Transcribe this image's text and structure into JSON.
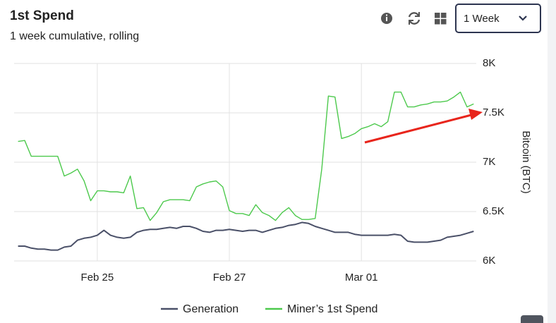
{
  "chart_data": {
    "type": "line",
    "title": "1st Spend",
    "subtitle": "1 week cumulative, rolling",
    "ylabel": "Bitcoin (BTC)",
    "x": [
      23.8,
      23.9,
      24.0,
      24.1,
      24.2,
      24.3,
      24.4,
      24.5,
      24.6,
      24.7,
      24.8,
      24.9,
      25.0,
      25.1,
      25.2,
      25.3,
      25.4,
      25.5,
      25.6,
      25.7,
      25.8,
      25.9,
      26.0,
      26.1,
      26.2,
      26.3,
      26.4,
      26.5,
      26.6,
      26.7,
      26.8,
      26.9,
      27.0,
      27.1,
      27.2,
      27.3,
      27.4,
      27.5,
      27.6,
      27.7,
      27.8,
      27.9,
      28.0,
      28.1,
      28.2,
      28.3,
      28.4,
      28.5,
      28.6,
      28.7,
      28.8,
      28.9,
      29.0,
      29.1,
      29.2,
      29.3,
      29.4,
      29.5,
      29.6,
      29.7,
      29.8,
      29.9,
      30.0,
      30.1,
      30.2,
      30.3,
      30.4,
      30.5,
      30.6,
      30.7
    ],
    "series": [
      {
        "name": "Generation",
        "color": "#4a5068",
        "values": [
          6150,
          6150,
          6130,
          6120,
          6120,
          6110,
          6110,
          6140,
          6150,
          6210,
          6230,
          6240,
          6260,
          6310,
          6260,
          6240,
          6230,
          6240,
          6290,
          6310,
          6320,
          6320,
          6330,
          6340,
          6330,
          6350,
          6350,
          6330,
          6300,
          6290,
          6310,
          6310,
          6320,
          6310,
          6300,
          6310,
          6310,
          6290,
          6310,
          6330,
          6340,
          6360,
          6370,
          6390,
          6380,
          6350,
          6330,
          6310,
          6290,
          6290,
          6290,
          6270,
          6260,
          6260,
          6260,
          6260,
          6260,
          6270,
          6260,
          6200,
          6190,
          6190,
          6190,
          6200,
          6210,
          6240,
          6250,
          6260,
          6280,
          6300
        ]
      },
      {
        "name": "Miner’s 1st Spend",
        "color": "#4cc94c",
        "values": [
          7210,
          7220,
          7060,
          7060,
          7060,
          7060,
          7060,
          6860,
          6890,
          6930,
          6810,
          6610,
          6710,
          6710,
          6700,
          6700,
          6690,
          6860,
          6530,
          6540,
          6410,
          6490,
          6600,
          6620,
          6620,
          6620,
          6610,
          6750,
          6780,
          6800,
          6810,
          6750,
          6510,
          6480,
          6480,
          6460,
          6570,
          6490,
          6460,
          6410,
          6490,
          6540,
          6460,
          6420,
          6420,
          6430,
          6930,
          7670,
          7660,
          7240,
          7260,
          7290,
          7340,
          7360,
          7390,
          7360,
          7410,
          7710,
          7710,
          7560,
          7560,
          7580,
          7590,
          7610,
          7610,
          7620,
          7660,
          7710,
          7560,
          7590
        ]
      }
    ],
    "xlim": [
      23.74,
      30.74
    ],
    "xticks": [
      {
        "value": 25,
        "label": "Feb 25"
      },
      {
        "value": 27,
        "label": "Feb 27"
      },
      {
        "value": 29,
        "label": "Mar 01"
      }
    ],
    "ylim": [
      6000,
      8000
    ],
    "yticks": [
      {
        "value": 6000,
        "label": "6K"
      },
      {
        "value": 6500,
        "label": "6.5K"
      },
      {
        "value": 7000,
        "label": "7K"
      },
      {
        "value": 7500,
        "label": "7.5K"
      },
      {
        "value": 8000,
        "label": "8K"
      }
    ],
    "grid": true,
    "legend": "bottom"
  },
  "controls": {
    "period": "1 Week"
  }
}
